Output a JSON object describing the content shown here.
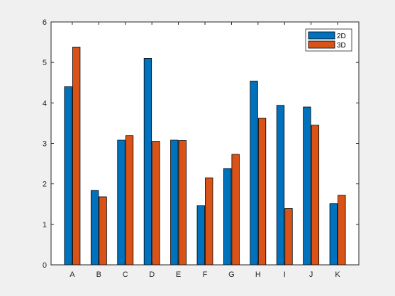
{
  "chart_data": {
    "type": "bar",
    "categories": [
      "A",
      "B",
      "C",
      "D",
      "E",
      "F",
      "G",
      "H",
      "I",
      "J",
      "K"
    ],
    "series": [
      {
        "name": "2D",
        "color": "#0072bd",
        "values": [
          4.4,
          1.84,
          3.08,
          5.1,
          3.08,
          1.46,
          2.38,
          4.54,
          3.94,
          3.9,
          1.51
        ]
      },
      {
        "name": "3D",
        "color": "#d95319",
        "values": [
          5.38,
          1.68,
          3.19,
          3.05,
          3.07,
          2.15,
          2.73,
          3.62,
          1.39,
          3.45,
          1.72
        ]
      }
    ],
    "xlabel": "",
    "ylabel": "",
    "ylim": [
      0,
      6
    ],
    "yticks": [
      0,
      1,
      2,
      3,
      4,
      5,
      6
    ],
    "grid": false,
    "legend_position": "top-right",
    "colors": {
      "figure_background": "#f0f0f0",
      "axes_background": "#ffffff",
      "axes_line": "#262626",
      "bar_edge": "#000000"
    }
  }
}
